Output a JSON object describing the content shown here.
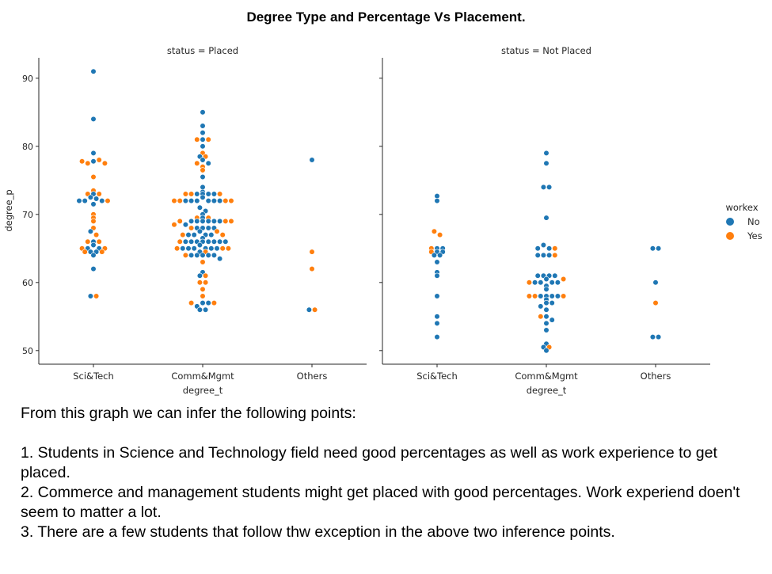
{
  "title": "Degree Type and Percentage Vs Placement.",
  "chart_data": {
    "type": "scatter",
    "subtype": "swarm",
    "x_label": "degree_t",
    "y_label": "degree_p",
    "y_range": [
      48,
      93
    ],
    "y_ticks": [
      50,
      60,
      70,
      80,
      90
    ],
    "categories": [
      "Sci&Tech",
      "Comm&Mgmt",
      "Others"
    ],
    "legend": {
      "title": "workex",
      "position": "right",
      "entries": [
        {
          "label": "No",
          "color": "#1f77b4"
        },
        {
          "label": "Yes",
          "color": "#ff7f0e"
        }
      ]
    },
    "facets": [
      {
        "label": "status = Placed",
        "groups": [
          {
            "category": "Sci&Tech",
            "no": [
              91,
              84,
              79,
              77.8,
              73,
              72.5,
              72.3,
              72,
              72,
              72,
              71.5,
              67.5,
              66,
              65.5,
              65,
              65,
              64.5,
              64.5,
              64,
              62,
              58
            ],
            "yes": [
              78,
              77.5,
              77.5,
              77.8,
              75.5,
              73.5,
              73,
              73,
              72,
              70,
              69.5,
              69,
              68,
              67,
              66,
              66,
              65,
              65,
              64.5,
              64.5,
              58
            ]
          },
          {
            "category": "Comm&Mgmt",
            "no": [
              85,
              83,
              82,
              81,
              80,
              78.5,
              78,
              77.5,
              75.5,
              74,
              73,
              73,
              73,
              73,
              73.3,
              72.5,
              72,
              72,
              72,
              72,
              72,
              72,
              71,
              70.5,
              70,
              69.5,
              69,
              69,
              69,
              69,
              69,
              69,
              68.5,
              68,
              68,
              68,
              68,
              67.5,
              67,
              67,
              67,
              67,
              66.5,
              66,
              66,
              66,
              66,
              66,
              66,
              66,
              66,
              65.5,
              65,
              65,
              65,
              65,
              65,
              65,
              64.5,
              64,
              64,
              64,
              64,
              64,
              63.5,
              61.5,
              61,
              57,
              57,
              56.5,
              56,
              56
            ],
            "yes": [
              81,
              81,
              79,
              78.5,
              77.5,
              77,
              76.5,
              73,
              73,
              73,
              72,
              72,
              72,
              72,
              69.5,
              69.5,
              69,
              69,
              69,
              68.5,
              68,
              67.5,
              67,
              67,
              66,
              65,
              65,
              65,
              64.5,
              64,
              63,
              61,
              60,
              60,
              59,
              58,
              57,
              57
            ]
          },
          {
            "category": "Others",
            "no": [
              78,
              56
            ],
            "yes": [
              64.5,
              62,
              56
            ]
          }
        ]
      },
      {
        "label": "status = Not Placed",
        "groups": [
          {
            "category": "Sci&Tech",
            "no": [
              72.7,
              72,
              65,
              65,
              64.5,
              64.5,
              64,
              64,
              63,
              61.5,
              61,
              58,
              55,
              54,
              52
            ],
            "yes": [
              67.5,
              67,
              65,
              64.5
            ]
          },
          {
            "category": "Comm&Mgmt",
            "no": [
              79,
              77.5,
              74,
              74,
              69.5,
              65.5,
              65,
              65,
              64,
              64,
              64,
              61,
              61,
              61,
              61,
              60.5,
              60,
              60,
              60,
              60,
              59.5,
              59,
              58,
              58,
              58,
              58,
              57.5,
              57,
              57,
              56.5,
              56,
              55,
              54.5,
              54,
              53,
              51,
              50.5,
              50
            ],
            "yes": [
              65,
              64,
              60.5,
              60,
              58,
              58,
              58,
              55,
              50.5
            ]
          },
          {
            "category": "Others",
            "no": [
              65,
              65,
              60,
              52,
              52
            ],
            "yes": [
              57
            ]
          }
        ]
      }
    ]
  },
  "notes": {
    "intro": "From this graph we can infer the following points:",
    "point1": "1. Students in Science and Technology field need good percentages as well as work experience to get placed.",
    "point2": "2. Commerce and management students might get placed with good percentages. Work experiend doen't seem to matter a lot.",
    "point3": "3. There are a few students that follow thw exception in the above two inference points."
  }
}
